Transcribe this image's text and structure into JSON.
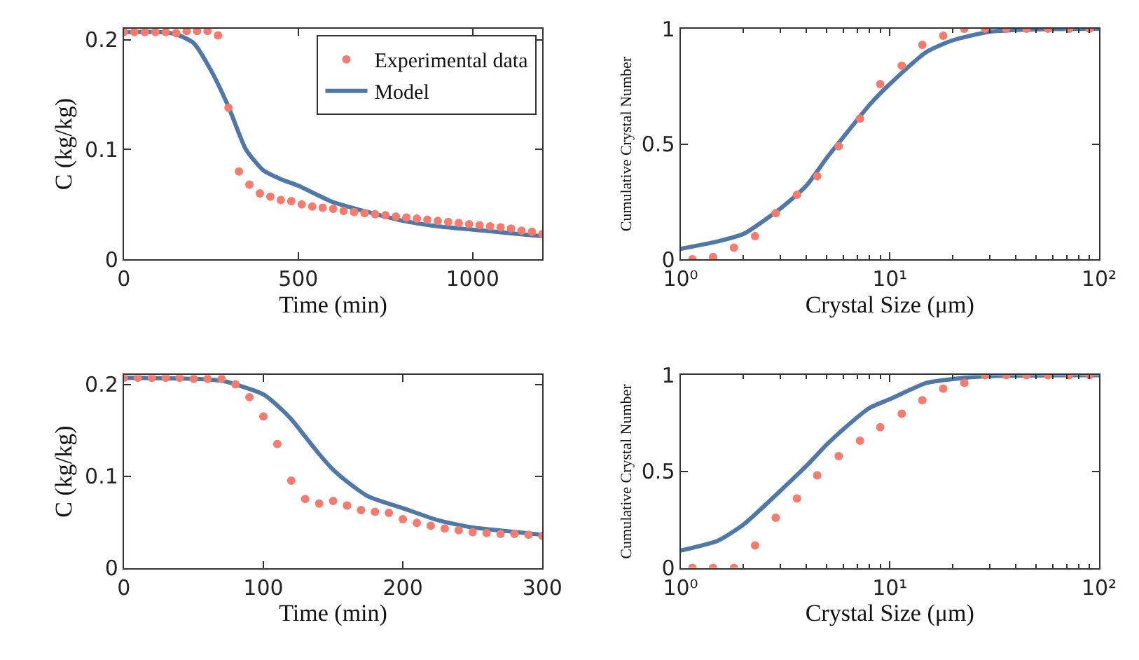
{
  "chart_data": [
    {
      "type": "line",
      "xlabel": "Time (min)",
      "ylabel": "C (kg/kg)",
      "xlim": [
        0,
        1200
      ],
      "ylim": [
        0,
        0.21
      ],
      "xticks": [
        0,
        500,
        1000
      ],
      "yticks": [
        0,
        0.1,
        0.2
      ],
      "legend": "top right",
      "series": [
        {
          "name": "Experimental data",
          "type": "scatter",
          "marker": "circle",
          "color": "#f47b6e",
          "x": [
            0,
            30,
            60,
            90,
            120,
            150,
            180,
            210,
            240,
            270,
            300,
            330,
            360,
            390,
            420,
            450,
            480,
            510,
            540,
            570,
            600,
            630,
            660,
            690,
            720,
            750,
            780,
            810,
            840,
            870,
            900,
            930,
            960,
            990,
            1020,
            1050,
            1080,
            1110,
            1140,
            1170,
            1200
          ],
          "values": [
            0.207,
            0.207,
            0.207,
            0.207,
            0.207,
            0.206,
            0.208,
            0.208,
            0.208,
            0.204,
            0.138,
            0.08,
            0.068,
            0.06,
            0.057,
            0.054,
            0.053,
            0.05,
            0.048,
            0.047,
            0.046,
            0.044,
            0.043,
            0.042,
            0.041,
            0.04,
            0.039,
            0.038,
            0.037,
            0.036,
            0.035,
            0.034,
            0.033,
            0.032,
            0.031,
            0.03,
            0.029,
            0.028,
            0.026,
            0.025,
            0.023
          ]
        },
        {
          "name": "Model",
          "marker": "none",
          "color": "#4f77a8",
          "x": [
            0,
            100,
            150,
            200,
            250,
            300,
            350,
            400,
            450,
            500,
            600,
            700,
            800,
            900,
            1000,
            1100,
            1200
          ],
          "values": [
            0.207,
            0.207,
            0.205,
            0.197,
            0.172,
            0.139,
            0.1,
            0.081,
            0.073,
            0.067,
            0.052,
            0.043,
            0.035,
            0.03,
            0.027,
            0.024,
            0.021
          ]
        }
      ]
    },
    {
      "type": "line",
      "xlabel": "Crystal Size (μm)",
      "ylabel": "Cumulative Crystal Number",
      "log": "x",
      "xlim": [
        1,
        100
      ],
      "ylim": [
        0,
        1
      ],
      "xticks": [
        {
          "value": 1,
          "label": "10⁰"
        },
        {
          "value": 10,
          "label": "10¹"
        },
        {
          "value": 100,
          "label": "10²"
        }
      ],
      "yticks": [
        0,
        0.5,
        1
      ],
      "series": [
        {
          "type": "scatter",
          "marker": "circle",
          "color": "#f47b6e",
          "x": [
            1.14,
            1.43,
            1.8,
            2.27,
            2.85,
            3.6,
            4.5,
            5.7,
            7.2,
            9.0,
            11.4,
            14.3,
            18.0,
            22.7,
            28.5,
            36,
            45,
            57,
            72,
            90
          ],
          "values": [
            0.0,
            0.01,
            0.05,
            0.1,
            0.2,
            0.28,
            0.36,
            0.49,
            0.61,
            0.76,
            0.84,
            0.93,
            0.97,
            1.0,
            1.0,
            1.0,
            1.0,
            1.0,
            1.0,
            1.0
          ]
        },
        {
          "marker": "none",
          "color": "#4f77a8",
          "x": [
            1,
            1.5,
            2,
            3,
            4,
            5,
            6,
            8,
            10,
            15,
            20,
            30,
            50,
            100
          ],
          "values": [
            0.045,
            0.077,
            0.11,
            0.22,
            0.32,
            0.44,
            0.53,
            0.67,
            0.76,
            0.9,
            0.95,
            0.987,
            0.998,
            1.0
          ]
        }
      ]
    },
    {
      "type": "line",
      "xlabel": "Time (min)",
      "ylabel": "C (kg/kg)",
      "xlim": [
        0,
        300
      ],
      "ylim": [
        0,
        0.21
      ],
      "xticks": [
        0,
        100,
        200,
        300
      ],
      "yticks": [
        0,
        0.1,
        0.2
      ],
      "series": [
        {
          "type": "scatter",
          "marker": "circle",
          "color": "#f47b6e",
          "x": [
            0,
            10,
            20,
            30,
            40,
            50,
            60,
            70,
            80,
            90,
            100,
            110,
            120,
            130,
            140,
            150,
            160,
            170,
            180,
            190,
            200,
            210,
            220,
            230,
            240,
            250,
            260,
            270,
            280,
            290,
            300
          ],
          "values": [
            0.207,
            0.207,
            0.207,
            0.207,
            0.207,
            0.206,
            0.206,
            0.206,
            0.2,
            0.186,
            0.165,
            0.135,
            0.095,
            0.075,
            0.07,
            0.073,
            0.068,
            0.063,
            0.061,
            0.06,
            0.053,
            0.049,
            0.046,
            0.043,
            0.041,
            0.039,
            0.038,
            0.037,
            0.037,
            0.036,
            0.035
          ]
        },
        {
          "marker": "none",
          "color": "#4f77a8",
          "x": [
            0,
            50,
            70,
            80,
            100,
            110,
            120,
            130,
            140,
            150,
            160,
            175,
            200,
            225,
            250,
            275,
            300
          ],
          "values": [
            0.207,
            0.206,
            0.204,
            0.2,
            0.189,
            0.177,
            0.162,
            0.143,
            0.124,
            0.107,
            0.094,
            0.078,
            0.065,
            0.052,
            0.044,
            0.04,
            0.036
          ]
        }
      ]
    },
    {
      "type": "line",
      "xlabel": "Crystal Size (μm)",
      "ylabel": "Cumulative Crystal Number",
      "log": "x",
      "xlim": [
        1,
        100
      ],
      "ylim": [
        0,
        1
      ],
      "xticks": [
        {
          "value": 1,
          "label": "10⁰"
        },
        {
          "value": 10,
          "label": "10¹"
        },
        {
          "value": 100,
          "label": "10²"
        }
      ],
      "yticks": [
        0,
        0.5,
        1
      ],
      "series": [
        {
          "type": "scatter",
          "marker": "circle",
          "color": "#f47b6e",
          "x": [
            1.14,
            1.43,
            1.8,
            2.27,
            2.85,
            3.6,
            4.5,
            5.7,
            7.2,
            9.0,
            11.4,
            14.3,
            18.0,
            22.7,
            28.5,
            36,
            45,
            57,
            72,
            90
          ],
          "values": [
            0.0,
            0.0,
            0.0,
            0.116,
            0.26,
            0.36,
            0.48,
            0.58,
            0.66,
            0.73,
            0.8,
            0.87,
            0.93,
            0.96,
            1.0,
            1.0,
            1.0,
            1.0,
            1.0,
            1.0
          ]
        },
        {
          "marker": "none",
          "color": "#4f77a8",
          "x": [
            1,
            1.5,
            2,
            3,
            4,
            5,
            6,
            8,
            10,
            15,
            20,
            30,
            100
          ],
          "values": [
            0.09,
            0.14,
            0.225,
            0.4,
            0.53,
            0.64,
            0.72,
            0.83,
            0.875,
            0.96,
            0.98,
            0.995,
            1.0
          ]
        }
      ]
    }
  ]
}
